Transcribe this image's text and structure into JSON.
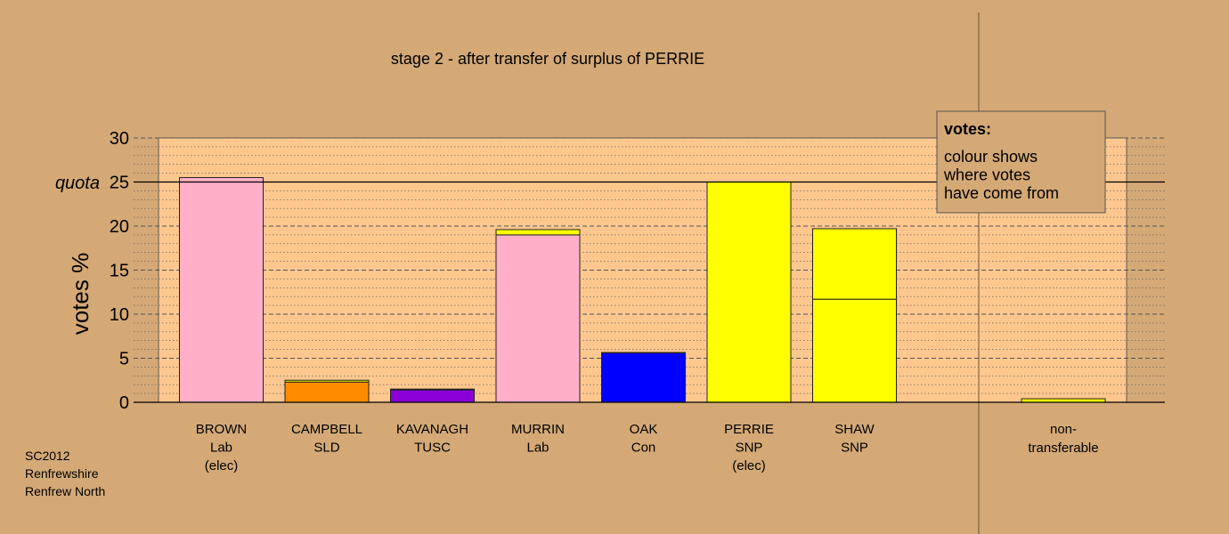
{
  "chart_data": {
    "type": "bar",
    "title": "stage 2 - after transfer of surplus of PERRIE",
    "ylabel": "votes %",
    "ylim": [
      0,
      30
    ],
    "yticks": [
      0,
      5,
      10,
      15,
      20,
      25,
      30
    ],
    "quota": {
      "label": "quota",
      "value": 25
    },
    "grid": true,
    "colors": {
      "background": "#d4a976",
      "plot_area": "#fdc78e",
      "Lab": "#ffb0c8",
      "SLD": "#ff8c00",
      "TUSC": "#8b00d8",
      "Con": "#0000ff",
      "SNP": "#ffff00"
    },
    "legend": {
      "title": "votes:",
      "lines": [
        "colour shows",
        "where votes",
        "have come from"
      ],
      "placement": "top-right"
    },
    "candidates": [
      {
        "name": "BROWN",
        "party": "Lab",
        "note": "(elec)",
        "segments": [
          {
            "from": "Lab",
            "value": 25.5
          }
        ]
      },
      {
        "name": "CAMPBELL",
        "party": "SLD",
        "note": "",
        "segments": [
          {
            "from": "SLD",
            "value": 2.3
          },
          {
            "from": "SNP",
            "value": 0.2
          }
        ]
      },
      {
        "name": "KAVANAGH",
        "party": "TUSC",
        "note": "",
        "segments": [
          {
            "from": "TUSC",
            "value": 1.4
          },
          {
            "from": "SNP",
            "value": 0.1
          }
        ]
      },
      {
        "name": "MURRIN",
        "party": "Lab",
        "note": "",
        "segments": [
          {
            "from": "Lab",
            "value": 19.0
          },
          {
            "from": "SNP",
            "value": 0.6
          }
        ]
      },
      {
        "name": "OAK",
        "party": "Con",
        "note": "",
        "segments": [
          {
            "from": "Con",
            "value": 5.6
          },
          {
            "from": "SNP",
            "value": 0.05
          }
        ]
      },
      {
        "name": "PERRIE",
        "party": "SNP",
        "note": "(elec)",
        "segments": [
          {
            "from": "SNP",
            "value": 25.0
          }
        ]
      },
      {
        "name": "SHAW",
        "party": "SNP",
        "note": "",
        "segments": [
          {
            "from": "SNP",
            "value": 11.7
          },
          {
            "from": "SNP",
            "value": 8.0
          }
        ]
      }
    ],
    "nontransferable": {
      "label_lines": [
        "non-",
        "transferable"
      ],
      "segments": [
        {
          "from": "SNP",
          "value": 0.4
        }
      ]
    }
  },
  "footer": {
    "line1": "SC2012",
    "line2": "Renfrewshire",
    "line3": "Renfrew North"
  }
}
